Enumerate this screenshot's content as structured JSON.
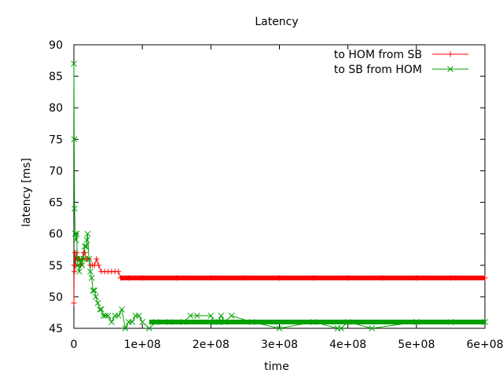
{
  "chart_data": {
    "type": "line",
    "title": "Latency",
    "xlabel": "time",
    "ylabel": "latency [ms]",
    "xlim": [
      0,
      600000000
    ],
    "ylim": [
      45,
      90
    ],
    "x_ticks": [
      0,
      100000000,
      200000000,
      300000000,
      400000000,
      500000000,
      600000000
    ],
    "x_tick_labels": [
      "0",
      "1e+08",
      "2e+08",
      "3e+08",
      "4e+08",
      "5e+08",
      "6e+08"
    ],
    "y_ticks": [
      45,
      50,
      55,
      60,
      65,
      70,
      75,
      80,
      85,
      90
    ],
    "y_tick_labels": [
      "45",
      "50",
      "55",
      "60",
      "65",
      "70",
      "75",
      "80",
      "85",
      "90"
    ],
    "grid": false,
    "legend_position": "top-right",
    "series": [
      {
        "name": "to HOM from SB",
        "color": "#ff0000",
        "marker": "plus",
        "x": [
          0,
          500000,
          1000000,
          1500000,
          2000000,
          3000000,
          4000000,
          5000000,
          6000000,
          8000000,
          10000000,
          12000000,
          14000000,
          16000000,
          18000000,
          20000000,
          22000000,
          24000000,
          27000000,
          30000000,
          33000000,
          36000000,
          40000000,
          45000000,
          50000000,
          55000000,
          60000000,
          65000000,
          68000000,
          80000000,
          100000000,
          150000000,
          200000000,
          250000000,
          300000000,
          350000000,
          400000000,
          450000000,
          500000000,
          550000000,
          600000000
        ],
        "y": [
          49,
          55,
          54,
          57,
          55,
          56,
          57,
          56,
          56,
          56,
          55,
          56,
          57,
          57,
          56,
          56,
          56,
          55,
          55,
          55,
          56,
          55,
          54,
          54,
          54,
          54,
          54,
          54,
          53,
          53,
          53,
          53,
          53,
          53,
          53,
          53,
          53,
          53,
          53,
          53,
          53
        ]
      },
      {
        "name": "to SB from HOM",
        "color": "#00a000",
        "marker": "cross",
        "x": [
          0,
          500000,
          1000000,
          2000000,
          3000000,
          4000000,
          5000000,
          6000000,
          8000000,
          10000000,
          12000000,
          14000000,
          16000000,
          18000000,
          19000000,
          20000000,
          22000000,
          24000000,
          26000000,
          28000000,
          30000000,
          32000000,
          35000000,
          38000000,
          40000000,
          43000000,
          46000000,
          50000000,
          55000000,
          60000000,
          65000000,
          70000000,
          75000000,
          80000000,
          85000000,
          90000000,
          95000000,
          100000000,
          110000000,
          120000000,
          140000000,
          160000000,
          170000000,
          180000000,
          200000000,
          205000000,
          210000000,
          215000000,
          220000000,
          230000000,
          260000000,
          300000000,
          350000000,
          385000000,
          390000000,
          400000000,
          435000000,
          500000000,
          550000000,
          600000000
        ],
        "y": [
          87,
          75,
          64,
          60,
          59,
          60,
          56,
          55,
          54,
          56,
          55,
          56,
          58,
          58,
          59,
          60,
          56,
          54,
          53,
          51,
          51,
          50,
          49,
          48,
          48,
          47,
          47,
          47,
          46,
          47,
          47,
          48,
          45,
          46,
          46,
          47,
          47,
          46,
          45,
          46,
          46,
          46,
          47,
          47,
          47,
          46,
          46,
          47,
          46,
          47,
          46,
          45,
          46,
          45,
          45,
          46,
          45,
          46,
          46,
          46
        ]
      }
    ]
  }
}
